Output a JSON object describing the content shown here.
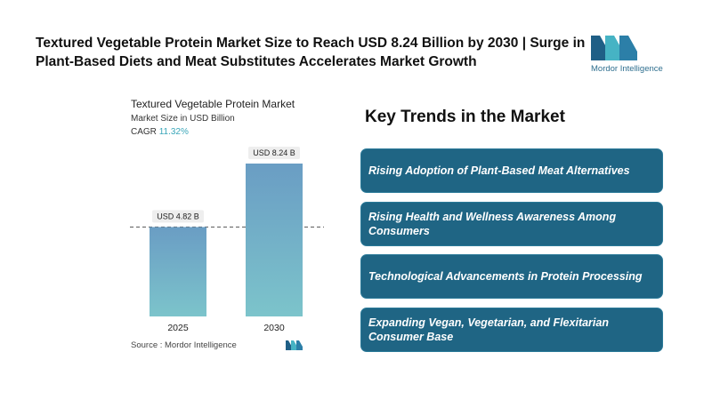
{
  "headline": "Textured Vegetable Protein Market Size to Reach USD 8.24 Billion by 2030 | Surge in Plant-Based Diets and Meat Substitutes Accelerates Market Growth",
  "logo": {
    "text": "Mordor Intelligence"
  },
  "chart_data": {
    "type": "bar",
    "title": "Textured Vegetable Protein Market",
    "subtitle": "Market Size in USD Billion",
    "cagr_label": "CAGR",
    "cagr_value": "11.32%",
    "categories": [
      "2025",
      "2030"
    ],
    "values": [
      4.82,
      8.24
    ],
    "data_labels": [
      "USD 4.82 B",
      "USD 8.24 B"
    ],
    "ylim": [
      0,
      8.24
    ],
    "reference_line_at": 4.82,
    "colors": {
      "bar_top": "#6a9dc4",
      "bar_bottom": "#7cc4cb",
      "label_bg": "#eeeeee"
    }
  },
  "source": "Source : Mordor Intelligence",
  "trends": {
    "title": "Key Trends in the Market",
    "items": [
      "Rising Adoption of Plant-Based Meat Alternatives",
      "Rising Health and Wellness Awareness Among Consumers",
      "Technological Advancements in Protein Processing",
      "Expanding Vegan, Vegetarian, and Flexitarian Consumer Base"
    ]
  },
  "colors": {
    "accent": "#1f6584",
    "teal": "#3aa6b9",
    "text": "#111111"
  }
}
